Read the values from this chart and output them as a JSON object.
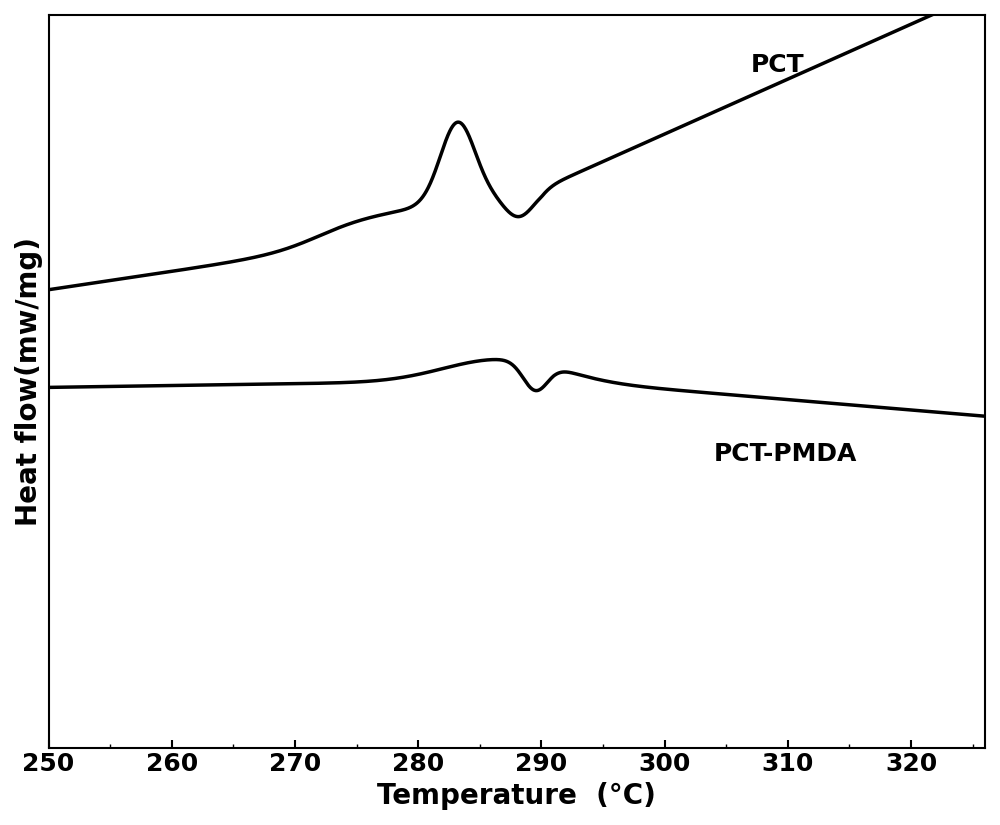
{
  "xlabel": "Temperature  (°C)",
  "ylabel": "Heat flow(mw/mg)",
  "xlim": [
    250,
    326
  ],
  "pct_label": "PCT",
  "pct_pmda_label": "PCT-PMDA",
  "line_color": "#000000",
  "line_width": 2.5,
  "bg_color": "#ffffff",
  "label_fontsize": 20,
  "tick_fontsize": 18,
  "annotation_fontsize": 18,
  "xticks": [
    250,
    260,
    270,
    280,
    290,
    300,
    310,
    320
  ],
  "figure_width": 10.0,
  "figure_height": 8.25
}
